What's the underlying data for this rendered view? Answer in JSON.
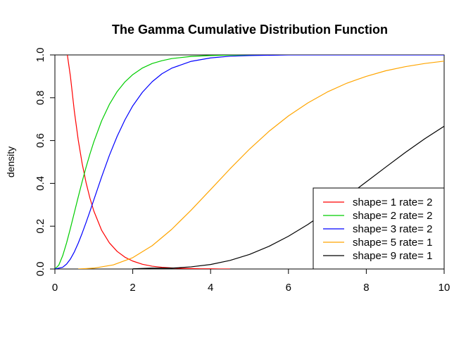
{
  "chart_data": {
    "type": "line",
    "title": "The Gamma Cumulative Distribution Function",
    "xlabel": "",
    "ylabel": "density",
    "xlim": [
      0,
      10
    ],
    "ylim": [
      0,
      1
    ],
    "x_ticks": [
      "0",
      "2",
      "4",
      "6",
      "8",
      "10"
    ],
    "y_ticks": [
      "0.0",
      "0.2",
      "0.4",
      "0.6",
      "0.8",
      "1.0"
    ],
    "grid": false,
    "legend_position": "bottom-right",
    "series": [
      {
        "name": "shape= 1  rate= 2",
        "color": "#ff0000",
        "x": [
          0.32,
          0.4,
          0.5,
          0.6,
          0.7,
          0.8,
          0.9,
          1.0,
          1.2,
          1.4,
          1.6,
          1.8,
          2.0,
          2.25,
          2.5,
          2.75,
          3.0,
          3.25,
          3.5,
          3.75,
          4.0,
          4.25,
          4.5
        ],
        "y": [
          1.0,
          0.898,
          0.736,
          0.602,
          0.493,
          0.404,
          0.331,
          0.271,
          0.181,
          0.122,
          0.082,
          0.055,
          0.037,
          0.022,
          0.013,
          0.008,
          0.005,
          0.003,
          0.002,
          0.001,
          0.001,
          0.0,
          0.0
        ]
      },
      {
        "name": "shape= 2  rate= 2",
        "color": "#00cd00",
        "x": [
          0.0,
          0.1,
          0.2,
          0.3,
          0.4,
          0.5,
          0.6,
          0.7,
          0.8,
          0.9,
          1.0,
          1.2,
          1.4,
          1.6,
          1.8,
          2.0,
          2.25,
          2.5,
          2.75,
          3.0,
          3.5,
          4.0,
          4.5,
          5.0,
          5.75
        ],
        "y": [
          0.0,
          0.018,
          0.062,
          0.122,
          0.191,
          0.264,
          0.337,
          0.408,
          0.475,
          0.537,
          0.594,
          0.692,
          0.769,
          0.829,
          0.874,
          0.908,
          0.939,
          0.96,
          0.973,
          0.983,
          0.993,
          0.997,
          0.999,
          1.0,
          1.0
        ]
      },
      {
        "name": "shape= 3  rate= 2",
        "color": "#0000ff",
        "x": [
          0.0,
          0.2,
          0.3,
          0.4,
          0.5,
          0.6,
          0.7,
          0.8,
          0.9,
          1.0,
          1.2,
          1.4,
          1.6,
          1.8,
          2.0,
          2.25,
          2.5,
          2.75,
          3.0,
          3.5,
          4.0,
          4.5,
          5.0,
          6.0,
          8.0,
          10.0
        ],
        "y": [
          0.0,
          0.008,
          0.023,
          0.047,
          0.08,
          0.121,
          0.167,
          0.217,
          0.269,
          0.323,
          0.43,
          0.531,
          0.62,
          0.697,
          0.762,
          0.826,
          0.875,
          0.912,
          0.938,
          0.97,
          0.986,
          0.994,
          0.997,
          1.0,
          1.0,
          1.0
        ]
      },
      {
        "name": "shape= 5  rate= 1",
        "color": "#ffa500",
        "x": [
          0.6,
          1.0,
          1.5,
          2.0,
          2.5,
          3.0,
          3.5,
          4.0,
          4.5,
          5.0,
          5.5,
          6.0,
          6.5,
          7.0,
          7.5,
          8.0,
          8.5,
          9.0,
          9.5,
          10.0
        ],
        "y": [
          0.0,
          0.004,
          0.019,
          0.053,
          0.109,
          0.185,
          0.275,
          0.371,
          0.468,
          0.56,
          0.643,
          0.715,
          0.776,
          0.827,
          0.868,
          0.9,
          0.926,
          0.945,
          0.96,
          0.971
        ]
      },
      {
        "name": "shape= 9  rate= 1",
        "color": "#000000",
        "x": [
          2.0,
          2.5,
          3.0,
          3.5,
          4.0,
          4.5,
          5.0,
          5.5,
          6.0,
          6.5,
          7.0,
          7.5,
          8.0,
          8.5,
          9.0,
          9.5,
          10.0
        ],
        "y": [
          0.001,
          0.004,
          0.004,
          0.01,
          0.021,
          0.04,
          0.068,
          0.106,
          0.153,
          0.208,
          0.271,
          0.338,
          0.407,
          0.476,
          0.544,
          0.608,
          0.667
        ]
      }
    ]
  }
}
